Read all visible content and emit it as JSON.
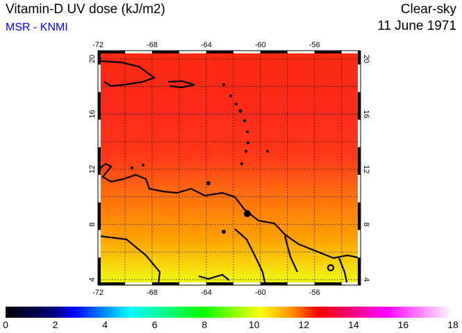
{
  "header": {
    "title": "Vitamin-D UV dose (kJ/m2)",
    "source": "MSR - KNMI",
    "condition": "Clear-sky",
    "date": "11 June 1971"
  },
  "map": {
    "lon_ticks": [
      "-72",
      "-68",
      "-64",
      "-60",
      "-56"
    ],
    "lat_ticks": [
      "20",
      "16",
      "12",
      "8",
      "4"
    ],
    "lon_range": [
      -72,
      -52.6
    ],
    "lat_range": [
      3.6,
      20.6
    ]
  },
  "colorbar": {
    "labels": [
      "0",
      "2",
      "4",
      "6",
      "8",
      "10",
      "12",
      "14",
      "16",
      "18"
    ],
    "range": [
      0,
      18
    ],
    "colors": [
      "#000000",
      "#000080",
      "#0000ff",
      "#00ffff",
      "#00ff80",
      "#00ff00",
      "#ffff00",
      "#ff8000",
      "#ff0000",
      "#ff00ff",
      "#ffffff"
    ]
  }
}
